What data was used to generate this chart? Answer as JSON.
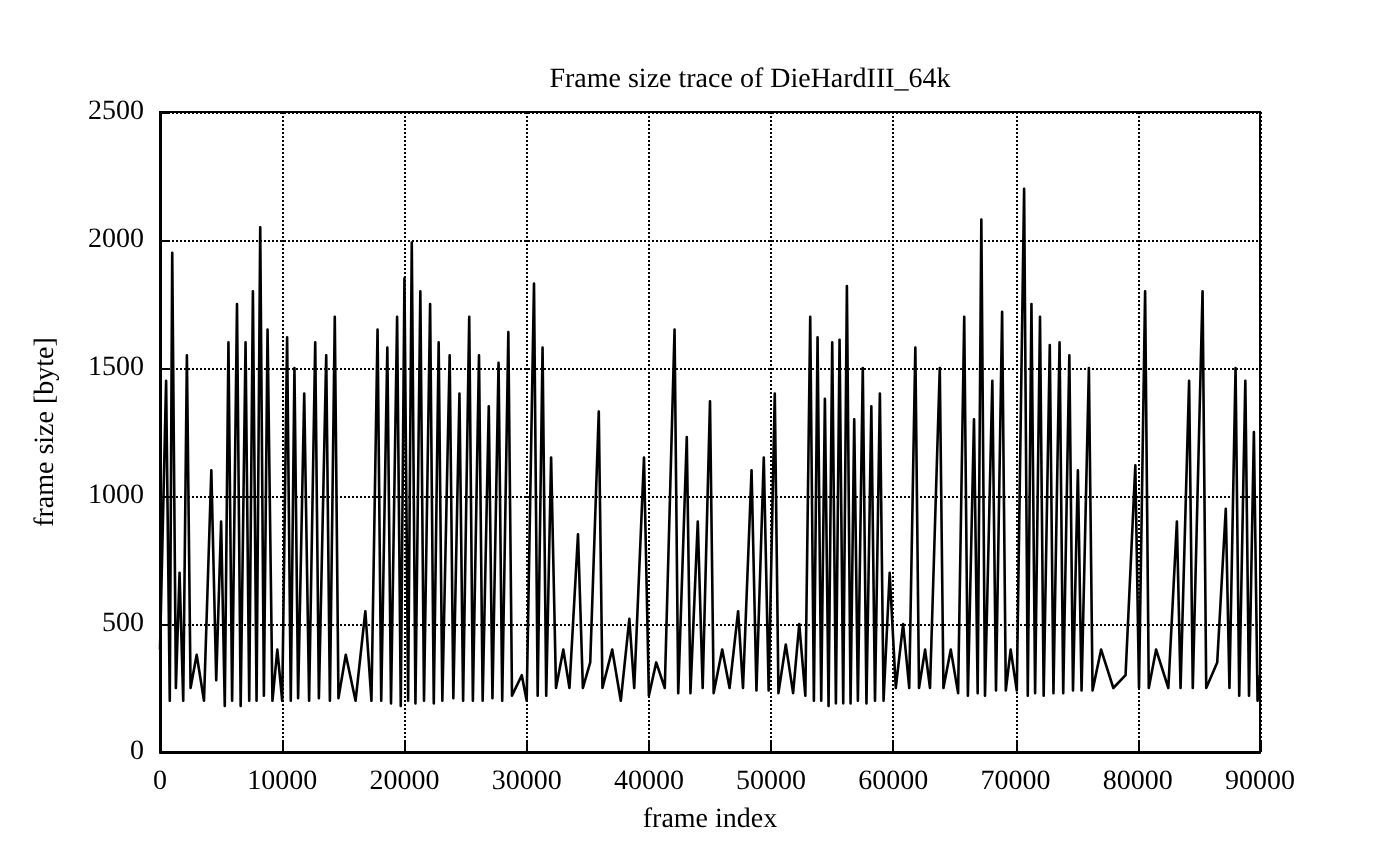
{
  "chart_data": {
    "type": "line",
    "title": "Frame size trace of DieHardIII_64k",
    "xlabel": "frame index",
    "ylabel": "frame size [byte]",
    "x": [
      0,
      500,
      800,
      1000,
      1300,
      1600,
      1900,
      2200,
      2500,
      3000,
      3600,
      4200,
      4600,
      5000,
      5300,
      5600,
      5900,
      6300,
      6600,
      7000,
      7300,
      7600,
      7900,
      8200,
      8500,
      8800,
      9200,
      9600,
      10000,
      10400,
      10700,
      11000,
      11300,
      11800,
      12200,
      12700,
      13000,
      13600,
      13900,
      14300,
      14600,
      15200,
      16000,
      16800,
      17300,
      17800,
      18100,
      18600,
      18900,
      19400,
      19700,
      20000,
      20300,
      20600,
      20900,
      21300,
      21600,
      22100,
      22400,
      22800,
      23100,
      23700,
      24000,
      24500,
      24800,
      25300,
      25600,
      26100,
      26400,
      26900,
      27200,
      27700,
      28000,
      28500,
      28800,
      29600,
      30000,
      30600,
      30900,
      31300,
      31600,
      32000,
      32400,
      33000,
      33500,
      34200,
      34600,
      35200,
      35900,
      36200,
      37000,
      37700,
      38400,
      38800,
      39600,
      40000,
      40600,
      41300,
      42100,
      42400,
      43100,
      43400,
      44000,
      44400,
      45000,
      45300,
      46000,
      46600,
      47300,
      47700,
      48400,
      48800,
      49400,
      49800,
      50300,
      50600,
      51200,
      51800,
      52300,
      52800,
      53200,
      53500,
      53800,
      54100,
      54400,
      54700,
      55000,
      55300,
      55600,
      55900,
      56200,
      56500,
      56800,
      57100,
      57500,
      57800,
      58200,
      58500,
      58900,
      59200,
      59700,
      60200,
      60800,
      61300,
      61800,
      62100,
      62600,
      63000,
      63800,
      64100,
      64700,
      65300,
      65800,
      66100,
      66600,
      66900,
      67200,
      67500,
      68100,
      68400,
      68900,
      69200,
      69600,
      70100,
      70700,
      71000,
      71300,
      71600,
      72000,
      72300,
      72800,
      73100,
      73600,
      73900,
      74400,
      74700,
      75100,
      75400,
      76000,
      76300,
      77000,
      78000,
      79000,
      79800,
      80100,
      80600,
      80900,
      81500,
      82500,
      83200,
      83500,
      84200,
      84500,
      85300,
      85600,
      86500,
      87200,
      87500,
      88000,
      88300,
      88800,
      89100,
      89500,
      89800,
      90000
    ],
    "series": [
      {
        "color": "#000000",
        "values": [
          400,
          1450,
          200,
          1950,
          250,
          700,
          200,
          1550,
          250,
          380,
          200,
          1100,
          280,
          900,
          180,
          1600,
          200,
          1750,
          180,
          1600,
          200,
          1800,
          200,
          2050,
          220,
          1650,
          200,
          400,
          200,
          1620,
          200,
          1500,
          210,
          1400,
          200,
          1600,
          210,
          1550,
          200,
          1700,
          210,
          380,
          200,
          550,
          200,
          1650,
          200,
          1580,
          190,
          1700,
          180,
          1850,
          200,
          1990,
          190,
          1800,
          200,
          1750,
          190,
          1600,
          200,
          1550,
          210,
          1400,
          200,
          1700,
          200,
          1550,
          200,
          1350,
          210,
          1520,
          200,
          1640,
          220,
          300,
          200,
          1830,
          220,
          1580,
          220,
          1150,
          250,
          400,
          250,
          850,
          250,
          350,
          1330,
          250,
          400,
          200,
          520,
          250,
          1150,
          220,
          350,
          250,
          1650,
          230,
          1230,
          230,
          900,
          250,
          1370,
          230,
          400,
          250,
          550,
          250,
          1100,
          240,
          1150,
          240,
          1400,
          230,
          420,
          230,
          500,
          220,
          1700,
          200,
          1620,
          200,
          1380,
          180,
          1600,
          190,
          1610,
          190,
          1820,
          190,
          1300,
          200,
          1500,
          190,
          1350,
          200,
          1400,
          200,
          700,
          250,
          500,
          250,
          1580,
          250,
          400,
          250,
          1500,
          250,
          400,
          230,
          1700,
          220,
          1300,
          230,
          2080,
          220,
          1450,
          240,
          1720,
          240,
          400,
          240,
          2200,
          220,
          1750,
          230,
          1700,
          220,
          1590,
          230,
          1600,
          230,
          1550,
          240,
          1100,
          240,
          1500,
          240,
          400,
          250,
          300,
          1120,
          250,
          1800,
          250,
          400,
          250,
          900,
          250,
          1450,
          250,
          1800,
          250,
          350,
          950,
          250,
          1500,
          220,
          1450,
          220,
          1250,
          200,
          300
        ]
      }
    ],
    "xlim": [
      0,
      90000
    ],
    "xticks": [
      0,
      10000,
      20000,
      30000,
      40000,
      50000,
      60000,
      70000,
      80000,
      90000
    ],
    "ylim": [
      0,
      2500
    ],
    "yticks": [
      0,
      500,
      1000,
      1500,
      2000,
      2500
    ],
    "grid": true,
    "marker": "none",
    "line_style": "solid"
  }
}
